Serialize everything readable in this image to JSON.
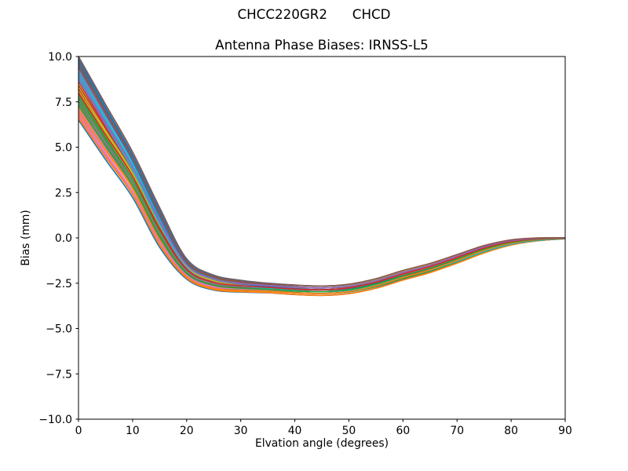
{
  "figure": {
    "background": "#ffffff",
    "text_color": "#000000"
  },
  "chart_data": {
    "type": "line",
    "suptitle": "CHCC220GR2      CHCD",
    "title": "Antenna Phase Biases: IRNSS-L5",
    "xlabel": "Elvation angle (degrees)",
    "ylabel": "Bias (mm)",
    "xlim": [
      0,
      90
    ],
    "ylim": [
      -10,
      10
    ],
    "grid": false,
    "legend": "none",
    "xticks": [
      {
        "v": 0,
        "label": "0"
      },
      {
        "v": 10,
        "label": "10"
      },
      {
        "v": 20,
        "label": "20"
      },
      {
        "v": 30,
        "label": "30"
      },
      {
        "v": 40,
        "label": "40"
      },
      {
        "v": 50,
        "label": "50"
      },
      {
        "v": 60,
        "label": "60"
      },
      {
        "v": 70,
        "label": "70"
      },
      {
        "v": 80,
        "label": "80"
      },
      {
        "v": 90,
        "label": "90"
      }
    ],
    "yticks": [
      {
        "v": 10.0,
        "label": "10.0"
      },
      {
        "v": 7.5,
        "label": "7.5"
      },
      {
        "v": 5.0,
        "label": "5.0"
      },
      {
        "v": 2.5,
        "label": "2.5"
      },
      {
        "v": 0.0,
        "label": "0.0"
      },
      {
        "v": -2.5,
        "label": "−2.5"
      },
      {
        "v": -5.0,
        "label": "−5.0"
      },
      {
        "v": -7.5,
        "label": "−7.5"
      },
      {
        "v": -10.0,
        "label": "−10.0"
      }
    ],
    "x": [
      0,
      5,
      10,
      15,
      20,
      25,
      30,
      35,
      40,
      45,
      50,
      55,
      60,
      65,
      70,
      75,
      80,
      85,
      90
    ],
    "envelope_center": [
      8.25,
      5.85,
      3.5,
      0.6,
      -1.7,
      -2.45,
      -2.65,
      -2.75,
      -2.85,
      -2.9,
      -2.8,
      -2.5,
      -2.05,
      -1.65,
      -1.15,
      -0.62,
      -0.25,
      -0.08,
      -0.02
    ],
    "envelope_halfwidth": [
      1.75,
      1.55,
      1.3,
      1.15,
      0.6,
      0.45,
      0.36,
      0.3,
      0.3,
      0.3,
      0.3,
      0.3,
      0.3,
      0.28,
      0.26,
      0.22,
      0.15,
      0.08,
      0.03
    ],
    "line_width": 1.6,
    "colors": [
      "#1f77b4",
      "#ff7f0e",
      "#2ca02c",
      "#d62728",
      "#9467bd",
      "#8c564b",
      "#e377c2",
      "#7f7f7f",
      "#bcbd22",
      "#17becf"
    ],
    "lines": [
      [
        0.0,
        0.086
      ],
      [
        0.2,
        0.229
      ],
      [
        0.4,
        0.371
      ],
      [
        0.6,
        0.514
      ],
      [
        0.8,
        0.657
      ],
      [
        1.0,
        0.8
      ],
      [
        0.171,
        0.943
      ],
      [
        0.371,
        0.057
      ],
      [
        0.571,
        0.2
      ],
      [
        0.771,
        0.343
      ],
      [
        0.971,
        0.486
      ],
      [
        0.143,
        0.629
      ],
      [
        0.343,
        0.771
      ],
      [
        0.543,
        0.914
      ],
      [
        0.743,
        0.029
      ],
      [
        0.943,
        0.171
      ],
      [
        0.114,
        0.314
      ],
      [
        0.314,
        0.457
      ],
      [
        0.514,
        0.6
      ],
      [
        0.714,
        0.743
      ],
      [
        0.914,
        0.886
      ],
      [
        0.086,
        0.0
      ],
      [
        0.286,
        0.143
      ],
      [
        0.486,
        0.286
      ],
      [
        0.686,
        0.429
      ],
      [
        0.886,
        0.571
      ],
      [
        0.057,
        0.714
      ],
      [
        0.257,
        0.857
      ],
      [
        0.457,
        1.0
      ],
      [
        0.657,
        0.114
      ],
      [
        0.857,
        0.257
      ],
      [
        0.029,
        0.4
      ],
      [
        0.229,
        0.543
      ],
      [
        0.429,
        0.686
      ],
      [
        0.629,
        0.829
      ],
      [
        0.829,
        0.971
      ]
    ]
  }
}
